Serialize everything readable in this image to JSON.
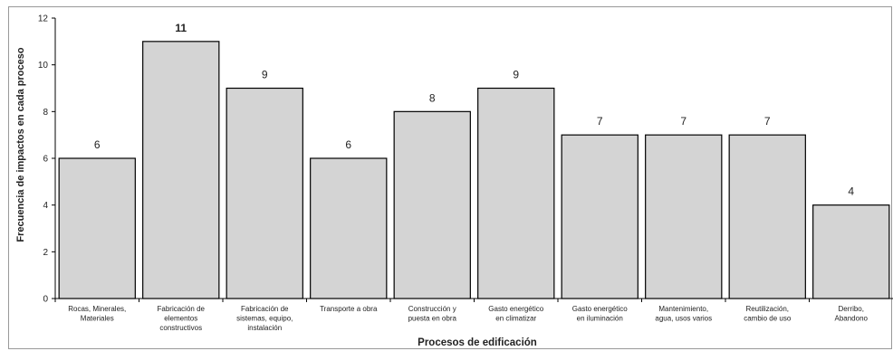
{
  "chart_data": {
    "type": "bar",
    "xlabel": "Procesos de edificación",
    "ylabel": "Frecuencia de impactos en cada proceso",
    "ylim": [
      0,
      12
    ],
    "yticks": [
      0,
      2,
      4,
      6,
      8,
      10,
      12
    ],
    "grid": false,
    "categories": [
      [
        "Rocas, Minerales,",
        "Materiales"
      ],
      [
        "Fabricación de",
        "elementos",
        "constructivos"
      ],
      [
        "Fabricación de",
        "sistemas, equipo,",
        "instalación"
      ],
      [
        "Transporte a obra"
      ],
      [
        "Construcción y",
        "puesta en obra"
      ],
      [
        "Gasto energético",
        "en climatizar"
      ],
      [
        "Gasto energético",
        "en iluminación"
      ],
      [
        "Mantenimiento,",
        "agua, usos varios"
      ],
      [
        "Reutilización,",
        "cambio de uso"
      ],
      [
        "Derribo,",
        "Abandono"
      ]
    ],
    "values": [
      6,
      11,
      9,
      6,
      8,
      9,
      7,
      7,
      7,
      4
    ],
    "bar_color": "#d4d4d4",
    "bar_edge_color": "#000000"
  }
}
